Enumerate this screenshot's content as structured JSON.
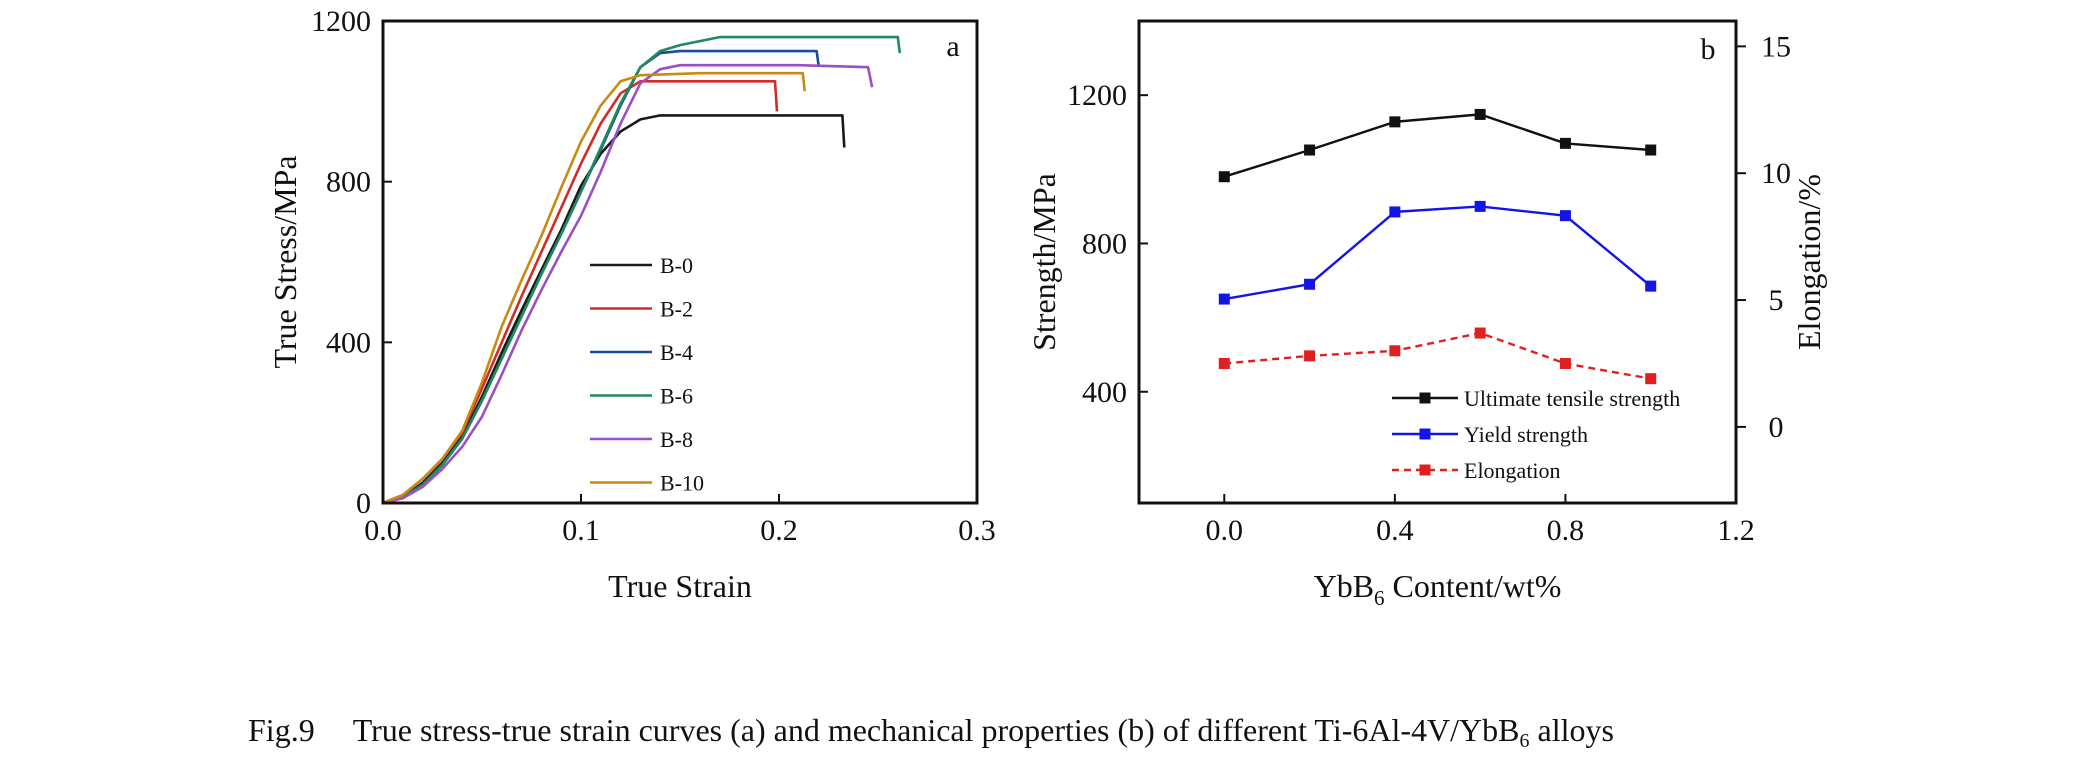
{
  "chart_data": [
    {
      "type": "line",
      "panel_label": "a",
      "xlabel": "True Strain",
      "ylabel": "True Stress/MPa",
      "xlim": [
        0,
        0.3
      ],
      "ylim": [
        0,
        1200
      ],
      "x_ticks": [
        "0.0",
        "0.1",
        "0.2",
        "0.3"
      ],
      "y_ticks": [
        "0",
        "400",
        "800",
        "1200"
      ],
      "legend_position": "center",
      "series": [
        {
          "name": "B-0",
          "color": "#1a1a1a",
          "x": [
            0,
            0.01,
            0.02,
            0.03,
            0.04,
            0.05,
            0.06,
            0.07,
            0.08,
            0.09,
            0.1,
            0.11,
            0.12,
            0.13,
            0.14,
            0.17,
            0.2,
            0.232,
            0.233
          ],
          "y": [
            0,
            15,
            50,
            100,
            165,
            265,
            375,
            480,
            580,
            680,
            790,
            870,
            925,
            955,
            965,
            965,
            965,
            965,
            885
          ]
        },
        {
          "name": "B-2",
          "color": "#d42a2a",
          "x": [
            0,
            0.01,
            0.02,
            0.03,
            0.04,
            0.05,
            0.06,
            0.07,
            0.08,
            0.09,
            0.1,
            0.11,
            0.12,
            0.13,
            0.16,
            0.198,
            0.199
          ],
          "y": [
            0,
            20,
            60,
            110,
            175,
            285,
            400,
            515,
            625,
            735,
            845,
            945,
            1020,
            1050,
            1050,
            1050,
            975
          ]
        },
        {
          "name": "B-4",
          "color": "#1b4c9a",
          "x": [
            0,
            0.01,
            0.02,
            0.03,
            0.04,
            0.05,
            0.06,
            0.07,
            0.08,
            0.09,
            0.1,
            0.11,
            0.12,
            0.13,
            0.14,
            0.15,
            0.18,
            0.219,
            0.22
          ],
          "y": [
            0,
            15,
            45,
            95,
            160,
            255,
            360,
            465,
            570,
            670,
            775,
            880,
            990,
            1085,
            1120,
            1125,
            1125,
            1125,
            1090
          ]
        },
        {
          "name": "B-6",
          "color": "#1f8a5c",
          "x": [
            0,
            0.01,
            0.02,
            0.03,
            0.04,
            0.05,
            0.06,
            0.07,
            0.08,
            0.09,
            0.1,
            0.11,
            0.12,
            0.13,
            0.14,
            0.15,
            0.17,
            0.2,
            0.23,
            0.26,
            0.261
          ],
          "y": [
            0,
            15,
            45,
            95,
            160,
            255,
            360,
            465,
            570,
            670,
            775,
            885,
            995,
            1085,
            1125,
            1140,
            1160,
            1160,
            1160,
            1160,
            1120
          ]
        },
        {
          "name": "B-8",
          "color": "#9b4fc7",
          "x": [
            0,
            0.01,
            0.02,
            0.03,
            0.04,
            0.05,
            0.06,
            0.07,
            0.08,
            0.09,
            0.1,
            0.11,
            0.12,
            0.13,
            0.14,
            0.15,
            0.18,
            0.21,
            0.245,
            0.247
          ],
          "y": [
            0,
            12,
            40,
            85,
            140,
            215,
            320,
            430,
            530,
            625,
            715,
            825,
            945,
            1045,
            1080,
            1090,
            1090,
            1090,
            1085,
            1035
          ]
        },
        {
          "name": "B-10",
          "color": "#c98a12",
          "x": [
            0,
            0.01,
            0.02,
            0.03,
            0.04,
            0.05,
            0.06,
            0.07,
            0.08,
            0.09,
            0.1,
            0.11,
            0.12,
            0.13,
            0.16,
            0.19,
            0.212,
            0.213
          ],
          "y": [
            0,
            20,
            60,
            110,
            180,
            300,
            440,
            555,
            665,
            785,
            900,
            990,
            1050,
            1065,
            1070,
            1070,
            1070,
            1025
          ]
        }
      ]
    },
    {
      "type": "line",
      "panel_label": "b",
      "xlabel_main": "YbB",
      "xlabel_sub": "6",
      "xlabel_rest": " Content/wt%",
      "ylabel": "Strength/MPa",
      "ylabel_right": "Elongation/%",
      "xlim": [
        -0.2,
        1.2
      ],
      "ylim": [
        100,
        1400
      ],
      "ylim_right": [
        -3,
        16
      ],
      "x_ticks": [
        "0.0",
        "0.4",
        "0.8",
        "1.2"
      ],
      "y_ticks": [
        "400",
        "800",
        "1200"
      ],
      "y_ticks_right": [
        "0",
        "5",
        "10",
        "15"
      ],
      "legend_position": "bottom-right",
      "x": [
        0.0,
        0.2,
        0.4,
        0.6,
        0.8,
        1.0
      ],
      "series": [
        {
          "name": "Ultimate tensile strength",
          "axis": "left",
          "color": "#111111",
          "dash": false,
          "values": [
            980,
            1052,
            1128,
            1148,
            1070,
            1052
          ]
        },
        {
          "name": "Yield strength",
          "axis": "left",
          "color": "#1414e6",
          "dash": false,
          "values": [
            650,
            690,
            885,
            900,
            875,
            685
          ]
        },
        {
          "name": "Elongation",
          "axis": "right",
          "color": "#e02020",
          "dash": true,
          "values": [
            2.5,
            2.8,
            3.0,
            3.7,
            2.5,
            1.9
          ]
        }
      ]
    }
  ],
  "caption": {
    "fig_label": "Fig.9",
    "text_before": "True stress-true strain curves (a) and mechanical properties (b) of different Ti-6Al-4V/YbB",
    "text_sub": "6",
    "text_after": " alloys"
  }
}
